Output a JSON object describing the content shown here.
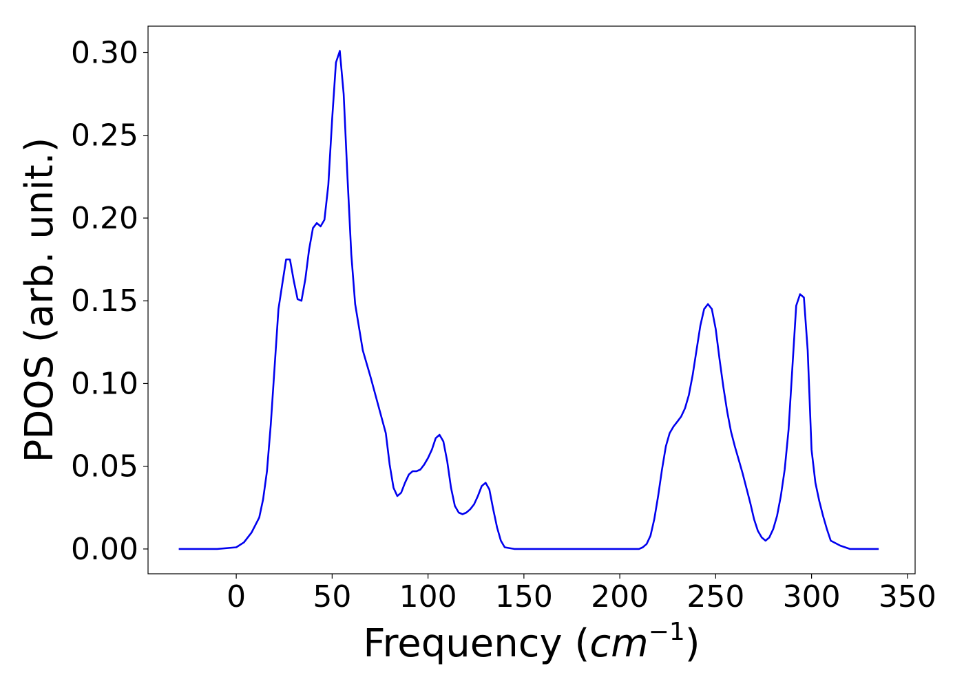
{
  "chart_data": {
    "type": "line",
    "xlabel_main": "Frequency (",
    "xlabel_unit": "cm",
    "xlabel_exp": "−1",
    "xlabel_close": ")",
    "ylabel": "PDOS (arb. unit.)",
    "xlim": [
      -46,
      354
    ],
    "ylim": [
      -0.015,
      0.316
    ],
    "x_ticks": [
      0,
      50,
      100,
      150,
      200,
      250,
      300,
      350
    ],
    "x_tick_labels": [
      "0",
      "50",
      "100",
      "150",
      "200",
      "250",
      "300",
      "350"
    ],
    "y_ticks": [
      0.0,
      0.05,
      0.1,
      0.15,
      0.2,
      0.25,
      0.3
    ],
    "y_tick_labels": [
      "0.00",
      "0.05",
      "0.10",
      "0.15",
      "0.20",
      "0.25",
      "0.30"
    ],
    "grid": false,
    "series": [
      {
        "color": "#0000ee",
        "x": [
          -30,
          -10,
          0,
          4,
          8,
          12,
          14,
          16,
          18,
          20,
          22,
          24,
          26,
          28,
          30,
          32,
          34,
          36,
          38,
          40,
          42,
          44,
          46,
          48,
          50,
          52,
          54,
          56,
          58,
          60,
          62,
          66,
          70,
          74,
          78,
          80,
          82,
          84,
          86,
          88,
          90,
          92,
          94,
          96,
          98,
          100,
          102,
          104,
          106,
          108,
          110,
          112,
          114,
          116,
          118,
          120,
          122,
          124,
          126,
          128,
          130,
          132,
          134,
          136,
          138,
          140,
          145,
          150,
          175,
          200,
          210,
          212,
          214,
          216,
          218,
          220,
          222,
          224,
          226,
          228,
          230,
          232,
          234,
          236,
          238,
          240,
          242,
          244,
          246,
          248,
          250,
          252,
          254,
          256,
          258,
          260,
          262,
          264,
          266,
          268,
          270,
          272,
          274,
          276,
          278,
          280,
          282,
          284,
          286,
          288,
          290,
          292,
          294,
          296,
          298,
          300,
          302,
          304,
          306,
          308,
          310,
          315,
          320,
          335
        ],
        "y": [
          0.0,
          0.0,
          0.001,
          0.004,
          0.01,
          0.019,
          0.03,
          0.047,
          0.075,
          0.11,
          0.145,
          0.16,
          0.175,
          0.175,
          0.162,
          0.151,
          0.15,
          0.163,
          0.181,
          0.194,
          0.197,
          0.195,
          0.199,
          0.22,
          0.26,
          0.294,
          0.301,
          0.275,
          0.225,
          0.178,
          0.148,
          0.12,
          0.104,
          0.087,
          0.07,
          0.051,
          0.037,
          0.032,
          0.034,
          0.04,
          0.045,
          0.047,
          0.047,
          0.048,
          0.051,
          0.055,
          0.06,
          0.067,
          0.069,
          0.065,
          0.053,
          0.037,
          0.026,
          0.022,
          0.021,
          0.022,
          0.024,
          0.027,
          0.032,
          0.038,
          0.04,
          0.036,
          0.024,
          0.013,
          0.005,
          0.001,
          0.0,
          0.0,
          0.0,
          0.0,
          0.0,
          0.001,
          0.003,
          0.008,
          0.018,
          0.032,
          0.048,
          0.062,
          0.07,
          0.074,
          0.077,
          0.08,
          0.085,
          0.093,
          0.105,
          0.12,
          0.135,
          0.145,
          0.148,
          0.145,
          0.133,
          0.115,
          0.098,
          0.083,
          0.071,
          0.062,
          0.054,
          0.046,
          0.037,
          0.028,
          0.018,
          0.011,
          0.007,
          0.005,
          0.007,
          0.012,
          0.02,
          0.032,
          0.048,
          0.072,
          0.11,
          0.147,
          0.154,
          0.152,
          0.12,
          0.06,
          0.04,
          0.029,
          0.02,
          0.012,
          0.005,
          0.002,
          0.0,
          0.0
        ]
      }
    ]
  }
}
